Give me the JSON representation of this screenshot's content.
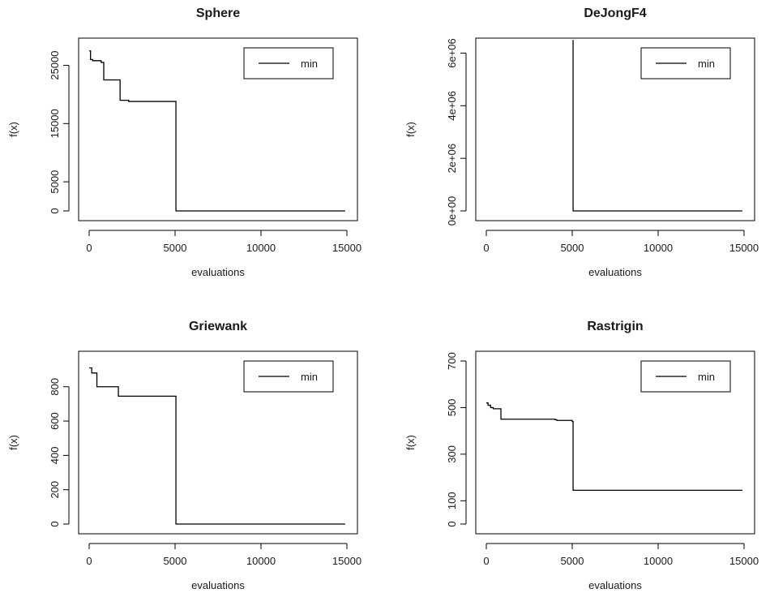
{
  "chart_data": [
    {
      "type": "line",
      "title": "Sphere",
      "xlabel": "evaluations",
      "ylabel": "f(x)",
      "xlim": [
        0,
        15000
      ],
      "ylim": [
        0,
        28000
      ],
      "x_ticks": [
        0,
        5000,
        10000,
        15000
      ],
      "x_tick_labels": [
        "0",
        "5000",
        "10000",
        "15000"
      ],
      "y_ticks": [
        0,
        5000,
        15000,
        25000
      ],
      "y_tick_labels": [
        "0",
        "5000",
        "15000",
        "25000"
      ],
      "legend": {
        "position": "top-right",
        "entries": [
          "min"
        ]
      },
      "series": [
        {
          "name": "min",
          "step": true,
          "x": [
            0,
            80,
            200,
            700,
            850,
            1800,
            2300,
            5050,
            5050,
            14900
          ],
          "y": [
            27500,
            26000,
            25800,
            25500,
            22500,
            19000,
            18800,
            18800,
            0,
            0
          ]
        }
      ]
    },
    {
      "type": "line",
      "title": "DeJongF4",
      "xlabel": "evaluations",
      "ylabel": "f(x)",
      "xlim": [
        0,
        15000
      ],
      "ylim": [
        0,
        6200000
      ],
      "x_ticks": [
        0,
        5000,
        10000,
        15000
      ],
      "x_tick_labels": [
        "0",
        "5000",
        "10000",
        "15000"
      ],
      "y_ticks": [
        0,
        2000000,
        4000000,
        6000000
      ],
      "y_tick_labels": [
        "0e+00",
        "2e+06",
        "4e+06",
        "6e+06"
      ],
      "legend": {
        "position": "top-right",
        "entries": [
          "min"
        ]
      },
      "series": [
        {
          "name": "min",
          "step": true,
          "x": [
            5050,
            5050,
            14900
          ],
          "y": [
            6500000,
            0,
            0
          ]
        }
      ]
    },
    {
      "type": "line",
      "title": "Griewank",
      "xlabel": "evaluations",
      "ylabel": "f(x)",
      "xlim": [
        0,
        15000
      ],
      "ylim": [
        0,
        950
      ],
      "x_ticks": [
        0,
        5000,
        10000,
        15000
      ],
      "x_tick_labels": [
        "0",
        "5000",
        "10000",
        "15000"
      ],
      "y_ticks": [
        0,
        200,
        400,
        600,
        800
      ],
      "y_tick_labels": [
        "0",
        "200",
        "400",
        "600",
        "800"
      ],
      "legend": {
        "position": "top-right",
        "entries": [
          "min"
        ]
      },
      "series": [
        {
          "name": "min",
          "step": true,
          "x": [
            0,
            150,
            450,
            1700,
            5050,
            5050,
            14900
          ],
          "y": [
            910,
            880,
            800,
            745,
            745,
            0,
            0
          ]
        }
      ]
    },
    {
      "type": "line",
      "title": "Rastrigin",
      "xlabel": "evaluations",
      "ylabel": "f(x)",
      "xlim": [
        0,
        15000
      ],
      "ylim": [
        0,
        700
      ],
      "x_ticks": [
        0,
        5000,
        10000,
        15000
      ],
      "x_tick_labels": [
        "0",
        "5000",
        "10000",
        "15000"
      ],
      "y_ticks": [
        0,
        100,
        300,
        500,
        700
      ],
      "y_tick_labels": [
        "0",
        "100",
        "300",
        "500",
        "700"
      ],
      "legend": {
        "position": "top-right",
        "entries": [
          "min"
        ]
      },
      "series": [
        {
          "name": "min",
          "step": true,
          "x": [
            0,
            100,
            250,
            400,
            850,
            3000,
            4000,
            4100,
            5000,
            5050,
            5050,
            14900
          ],
          "y": [
            520,
            510,
            500,
            495,
            450,
            450,
            448,
            445,
            440,
            390,
            145,
            145
          ]
        }
      ]
    }
  ]
}
